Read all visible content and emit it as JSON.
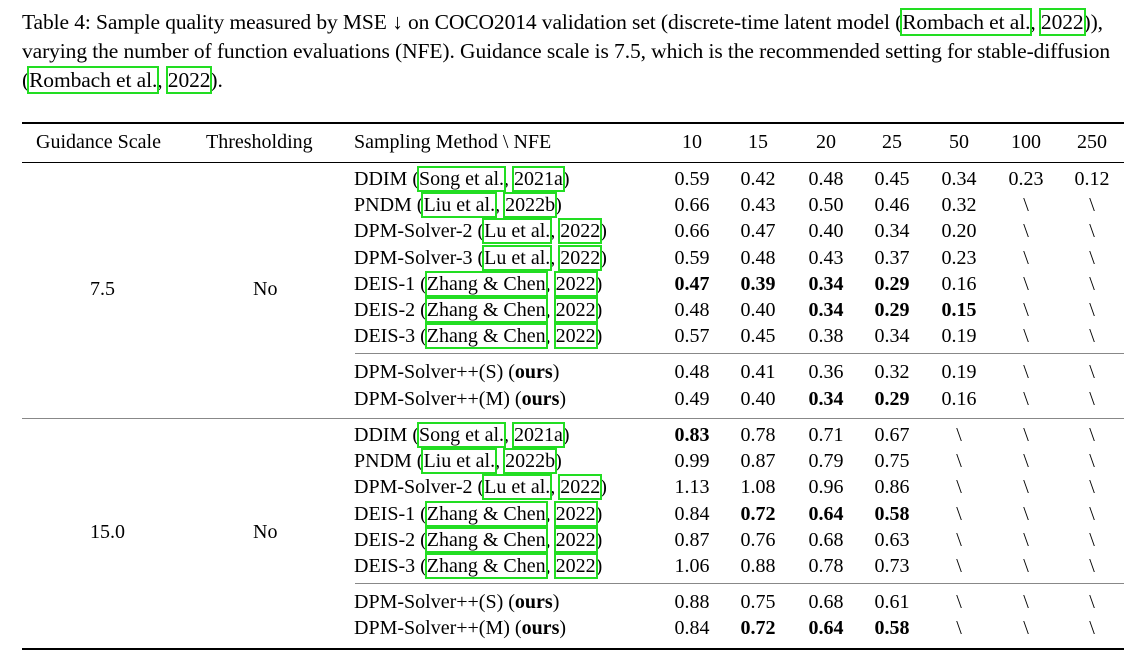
{
  "caption": {
    "label": "Table 4:",
    "text1": " Sample quality measured by MSE ↓ on COCO2014 validation set (discrete-time latent model (",
    "cite1a": "Rombach et al.",
    "sep": ", ",
    "cite1b": "2022",
    "text2": ")), varying the number of function evaluations (NFE). Guidance scale is 7.5, which is the recommended setting for stable-diffusion (",
    "cite2a": "Rombach et al.",
    "cite2b": "2022",
    "text3": ")."
  },
  "headers": {
    "guidance": "Guidance Scale",
    "thresholding": "Thresholding",
    "method": "Sampling Method \\ NFE",
    "nfe": [
      "10",
      "15",
      "20",
      "25",
      "50",
      "100",
      "250"
    ]
  },
  "groups": [
    {
      "guidance": "7.5",
      "thresholding": "No",
      "rows": [
        {
          "name": "DDIM",
          "cite_author": "Song et al.",
          "cite_year": "2021a",
          "ours": false,
          "values": [
            "0.59",
            "0.42",
            "0.48",
            "0.45",
            "0.34",
            "0.23",
            "0.12"
          ],
          "bold": [
            false,
            false,
            false,
            false,
            false,
            false,
            false
          ]
        },
        {
          "name": "PNDM",
          "cite_author": "Liu et al.",
          "cite_year": "2022b",
          "ours": false,
          "values": [
            "0.66",
            "0.43",
            "0.50",
            "0.46",
            "0.32",
            "\\",
            "\\"
          ],
          "bold": [
            false,
            false,
            false,
            false,
            false,
            false,
            false
          ]
        },
        {
          "name": "DPM-Solver-2",
          "cite_author": "Lu et al.",
          "cite_year": "2022",
          "ours": false,
          "values": [
            "0.66",
            "0.47",
            "0.40",
            "0.34",
            "0.20",
            "\\",
            "\\"
          ],
          "bold": [
            false,
            false,
            false,
            false,
            false,
            false,
            false
          ]
        },
        {
          "name": "DPM-Solver-3",
          "cite_author": "Lu et al.",
          "cite_year": "2022",
          "ours": false,
          "values": [
            "0.59",
            "0.48",
            "0.43",
            "0.37",
            "0.23",
            "\\",
            "\\"
          ],
          "bold": [
            false,
            false,
            false,
            false,
            false,
            false,
            false
          ]
        },
        {
          "name": "DEIS-1",
          "cite_author": "Zhang & Chen",
          "cite_year": "2022",
          "ours": false,
          "values": [
            "0.47",
            "0.39",
            "0.34",
            "0.29",
            "0.16",
            "\\",
            "\\"
          ],
          "bold": [
            true,
            true,
            true,
            true,
            false,
            false,
            false
          ]
        },
        {
          "name": "DEIS-2",
          "cite_author": "Zhang & Chen",
          "cite_year": "2022",
          "ours": false,
          "values": [
            "0.48",
            "0.40",
            "0.34",
            "0.29",
            "0.15",
            "\\",
            "\\"
          ],
          "bold": [
            false,
            false,
            true,
            true,
            true,
            false,
            false
          ]
        },
        {
          "name": "DEIS-3",
          "cite_author": "Zhang & Chen",
          "cite_year": "2022",
          "ours": false,
          "values": [
            "0.57",
            "0.45",
            "0.38",
            "0.34",
            "0.19",
            "\\",
            "\\"
          ],
          "bold": [
            false,
            false,
            false,
            false,
            false,
            false,
            false
          ]
        },
        {
          "name": "DPM-Solver++(S)",
          "ours": true,
          "ours_label": "ours",
          "values": [
            "0.48",
            "0.41",
            "0.36",
            "0.32",
            "0.19",
            "\\",
            "\\"
          ],
          "bold": [
            false,
            false,
            false,
            false,
            false,
            false,
            false
          ]
        },
        {
          "name": "DPM-Solver++(M)",
          "ours": true,
          "ours_label": "ours",
          "values": [
            "0.49",
            "0.40",
            "0.34",
            "0.29",
            "0.16",
            "\\",
            "\\"
          ],
          "bold": [
            false,
            false,
            true,
            true,
            false,
            false,
            false
          ]
        }
      ]
    },
    {
      "guidance": "15.0",
      "thresholding": "No",
      "rows": [
        {
          "name": "DDIM",
          "cite_author": "Song et al.",
          "cite_year": "2021a",
          "ours": false,
          "values": [
            "0.83",
            "0.78",
            "0.71",
            "0.67",
            "\\",
            "\\",
            "\\"
          ],
          "bold": [
            true,
            false,
            false,
            false,
            false,
            false,
            false
          ]
        },
        {
          "name": "PNDM",
          "cite_author": "Liu et al.",
          "cite_year": "2022b",
          "ours": false,
          "values": [
            "0.99",
            "0.87",
            "0.79",
            "0.75",
            "\\",
            "\\",
            "\\"
          ],
          "bold": [
            false,
            false,
            false,
            false,
            false,
            false,
            false
          ]
        },
        {
          "name": "DPM-Solver-2",
          "cite_author": "Lu et al.",
          "cite_year": "2022",
          "ours": false,
          "values": [
            "1.13",
            "1.08",
            "0.96",
            "0.86",
            "\\",
            "\\",
            "\\"
          ],
          "bold": [
            false,
            false,
            false,
            false,
            false,
            false,
            false
          ]
        },
        {
          "name": "DEIS-1",
          "cite_author": "Zhang & Chen",
          "cite_year": "2022",
          "ours": false,
          "values": [
            "0.84",
            "0.72",
            "0.64",
            "0.58",
            "\\",
            "\\",
            "\\"
          ],
          "bold": [
            false,
            true,
            true,
            true,
            false,
            false,
            false
          ]
        },
        {
          "name": "DEIS-2",
          "cite_author": "Zhang & Chen",
          "cite_year": "2022",
          "ours": false,
          "values": [
            "0.87",
            "0.76",
            "0.68",
            "0.63",
            "\\",
            "\\",
            "\\"
          ],
          "bold": [
            false,
            false,
            false,
            false,
            false,
            false,
            false
          ]
        },
        {
          "name": "DEIS-3",
          "cite_author": "Zhang & Chen",
          "cite_year": "2022",
          "ours": false,
          "values": [
            "1.06",
            "0.88",
            "0.78",
            "0.73",
            "\\",
            "\\",
            "\\"
          ],
          "bold": [
            false,
            false,
            false,
            false,
            false,
            false,
            false
          ]
        },
        {
          "name": "DPM-Solver++(S)",
          "ours": true,
          "ours_label": "ours",
          "values": [
            "0.88",
            "0.75",
            "0.68",
            "0.61",
            "\\",
            "\\",
            "\\"
          ],
          "bold": [
            false,
            false,
            false,
            false,
            false,
            false,
            false
          ]
        },
        {
          "name": "DPM-Solver++(M)",
          "ours": true,
          "ours_label": "ours",
          "values": [
            "0.84",
            "0.72",
            "0.64",
            "0.58",
            "\\",
            "\\",
            "\\"
          ],
          "bold": [
            false,
            true,
            true,
            true,
            false,
            false,
            false
          ]
        }
      ]
    }
  ]
}
